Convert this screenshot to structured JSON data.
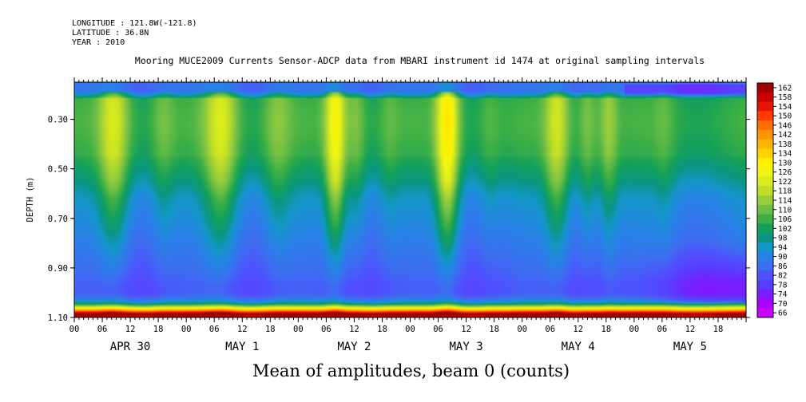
{
  "header": {
    "longitude": "LONGITUDE : 121.8W(-121.8)",
    "latitude": "LATITUDE : 36.8N",
    "year": "YEAR : 2010"
  },
  "chart_data": {
    "type": "heatmap",
    "title": "Mooring MUCE2009 Currents Sensor-ADCP data from MBARI instrument id 1474 at original sampling intervals",
    "subtitle": "Mean of amplitudes, beam 0 (counts)",
    "xlabel": "",
    "ylabel": "DEPTH (m)",
    "y_ticks": [
      "0.30",
      "0.50",
      "0.70",
      "0.90",
      "1.10"
    ],
    "y_tick_values": [
      0.3,
      0.5,
      0.7,
      0.9,
      1.1
    ],
    "ylim": [
      1.1,
      0.15
    ],
    "x_hour_ticks": [
      "00",
      "06",
      "12",
      "18",
      "00",
      "06",
      "12",
      "18",
      "00",
      "06",
      "12",
      "18",
      "00",
      "06",
      "12",
      "18",
      "00",
      "06",
      "12",
      "18",
      "00",
      "06",
      "12",
      "18"
    ],
    "x_day_labels": [
      "APR 30",
      "MAY  1",
      "MAY  2",
      "MAY  3",
      "MAY  4",
      "MAY  5"
    ],
    "xlim_hours": [
      0,
      144
    ],
    "colorbar": {
      "levels": [
        162,
        158,
        154,
        150,
        146,
        142,
        138,
        134,
        130,
        126,
        122,
        118,
        114,
        110,
        106,
        102,
        98,
        94,
        90,
        86,
        82,
        78,
        74,
        70,
        66
      ],
      "min": 66,
      "max": 162
    },
    "spikes": [
      {
        "hour": 8.5,
        "peak": 118,
        "width": 3.2
      },
      {
        "hour": 19.0,
        "peak": 106,
        "width": 2.5
      },
      {
        "hour": 31.5,
        "peak": 118,
        "width": 3.5
      },
      {
        "hour": 43.5,
        "peak": 108,
        "width": 3.0
      },
      {
        "hour": 56.0,
        "peak": 124,
        "width": 2.2
      },
      {
        "hour": 60.5,
        "peak": 108,
        "width": 2.0
      },
      {
        "hour": 67.5,
        "peak": 104,
        "width": 2.2
      },
      {
        "hour": 80.0,
        "peak": 127,
        "width": 2.4
      },
      {
        "hour": 89.0,
        "peak": 104,
        "width": 2.2
      },
      {
        "hour": 103.5,
        "peak": 116,
        "width": 2.6
      },
      {
        "hour": 110.0,
        "peak": 108,
        "width": 2.0
      },
      {
        "hour": 114.5,
        "peak": 110,
        "width": 2.0
      },
      {
        "hour": 126.5,
        "peak": 104,
        "width": 2.2
      }
    ]
  }
}
